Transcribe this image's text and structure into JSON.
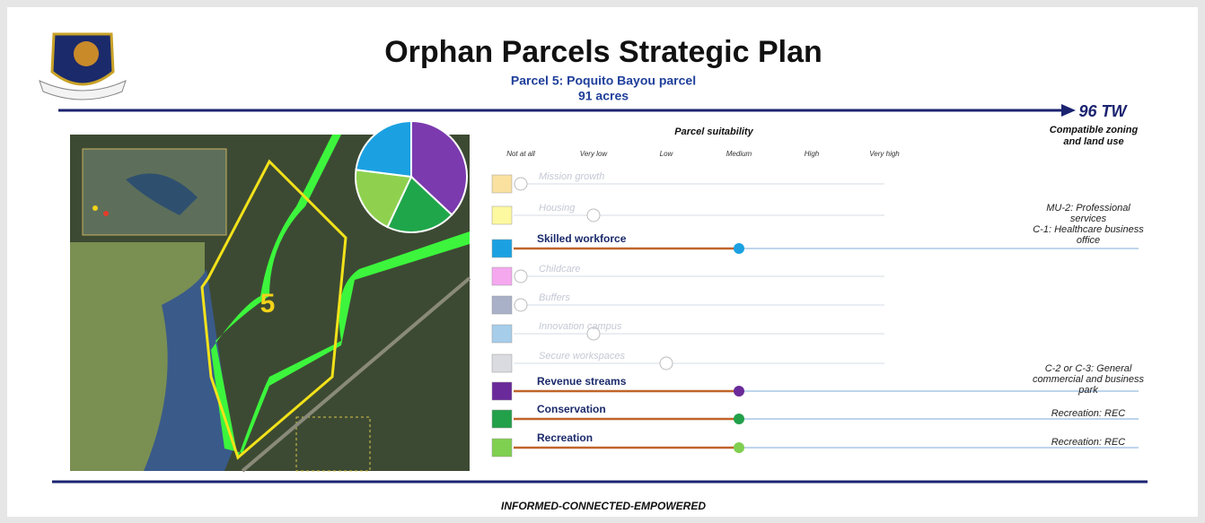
{
  "header": {
    "title": "Orphan Parcels Strategic Plan",
    "subtitle": [
      "Parcel 5: Poquito Bayou parcel",
      "91 acres"
    ],
    "org": "96 TW",
    "column_title": [
      "Compatible zoning",
      "and land use"
    ]
  },
  "map": {
    "parcel_label": "5",
    "pie": {
      "type": "pie",
      "values": [
        37,
        20,
        20,
        23
      ],
      "colors": [
        "#7b3aae",
        "#1fa64a",
        "#8fd14f",
        "#1ba1e2"
      ]
    }
  },
  "suitability": {
    "title": "Parcel suitability",
    "scale": [
      "Not at all",
      "Very low",
      "Low",
      "Medium",
      "High",
      "Very high"
    ],
    "rows": [
      {
        "name": "Mission growth",
        "color": "#fbe1a0",
        "level": 0,
        "active": false
      },
      {
        "name": "Housing",
        "color": "#fdf9a0",
        "level": 1,
        "active": false
      },
      {
        "name": "Skilled workforce",
        "color": "#1ba1e2",
        "level": 3,
        "active": true,
        "zoning": [
          "MU-2: Professional",
          "services",
          "C-1: Healthcare business",
          "office"
        ]
      },
      {
        "name": "Childcare",
        "color": "#f6a8ef",
        "level": 0,
        "active": false
      },
      {
        "name": "Buffers",
        "color": "#a9b1c9",
        "level": 0,
        "active": false
      },
      {
        "name": "Innovation campus",
        "color": "#a6cdea",
        "level": 1,
        "active": false
      },
      {
        "name": "Secure workspaces",
        "color": "#d9dbe0",
        "level": 2,
        "active": false
      },
      {
        "name": "Revenue streams",
        "color": "#6a2a9a",
        "level": 3,
        "active": true,
        "zoning": [
          "C-2 or C-3: General",
          "commercial and business",
          "park"
        ]
      },
      {
        "name": "Conservation",
        "color": "#22a04a",
        "level": 3,
        "active": true,
        "zoning": [
          "Recreation: REC"
        ]
      },
      {
        "name": "Recreation",
        "color": "#7fcf50",
        "level": 3,
        "active": true,
        "zoning": [
          "Recreation: REC"
        ]
      }
    ]
  },
  "footer": "INFORMED-CONNECTED-EMPOWERED"
}
